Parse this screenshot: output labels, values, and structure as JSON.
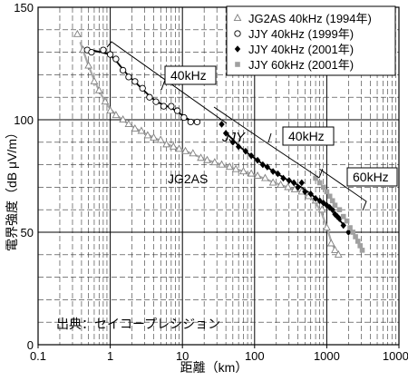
{
  "chart_data": {
    "type": "scatter",
    "x_scale": "log",
    "xlim": [
      0.1,
      10000
    ],
    "ylim": [
      0,
      150
    ],
    "grid": true,
    "legend_position": "top-right",
    "xlabel": "距離（km）",
    "ylabel": "電界強度（dB μV/m）",
    "source_note": "出典：セイコープレシジョン",
    "x_ticks": [
      {
        "value": 0.1,
        "label": "0.1"
      },
      {
        "value": 1,
        "label": "1"
      },
      {
        "value": 10,
        "label": "10"
      },
      {
        "value": 100,
        "label": "100"
      },
      {
        "value": 1000,
        "label": "1000"
      },
      {
        "value": 10000,
        "label": "10000"
      }
    ],
    "y_ticks": [
      {
        "value": 0,
        "label": "0"
      },
      {
        "value": 50,
        "label": "50"
      },
      {
        "value": 100,
        "label": "100"
      },
      {
        "value": 150,
        "label": "150"
      }
    ],
    "annotations": [
      {
        "text": "40kHz"
      },
      {
        "text": "JJY"
      },
      {
        "text": "40kHz"
      },
      {
        "text": "60kHz"
      },
      {
        "text": "JG2AS"
      }
    ],
    "series": [
      {
        "name": "JG2AS 40kHz (1994年)",
        "marker": "triangle-open",
        "color": "#808080",
        "x": [
          0.35,
          0.42,
          0.5,
          0.6,
          0.7,
          0.85,
          1.0,
          1.2,
          1.5,
          1.8,
          2.2,
          2.7,
          3.3,
          4,
          5,
          6,
          7.5,
          9,
          11,
          14,
          18,
          22,
          28,
          35,
          45,
          55,
          70,
          90,
          110,
          140,
          180,
          230,
          290,
          360,
          450,
          560,
          700,
          860,
          1000,
          1150,
          1300,
          1450
        ],
        "y": [
          138,
          131,
          124,
          117,
          113,
          108,
          104,
          102,
          100,
          98,
          96,
          95,
          93,
          92,
          91,
          89,
          88,
          87,
          86,
          85,
          83,
          82,
          81,
          80,
          79,
          78,
          77,
          76,
          75,
          74,
          72,
          71,
          70,
          69,
          68,
          66,
          64,
          60,
          52,
          45,
          42,
          40
        ]
      },
      {
        "name": "JJY 40kHz (1999年)",
        "marker": "circle-open",
        "color": "#000000",
        "x": [
          0.48,
          0.55,
          0.8,
          1.0,
          1.2,
          1.5,
          1.8,
          2.2,
          2.8,
          3.5,
          4.3,
          5.5,
          7,
          8.5,
          10.5,
          13,
          16
        ],
        "y": [
          131,
          130,
          131,
          129,
          127,
          122,
          119,
          117,
          114,
          110,
          108,
          106,
          106,
          104,
          101,
          99,
          99
        ]
      },
      {
        "name": "JJY 40kHz (2001年)",
        "marker": "diamond-filled",
        "color": "#000000",
        "x": [
          35,
          40,
          50,
          60,
          75,
          90,
          110,
          130,
          150,
          180,
          210,
          250,
          300,
          350,
          400,
          450,
          500,
          600,
          700,
          800,
          900,
          1000,
          1100,
          1200,
          1300,
          1400,
          1500,
          1700,
          2000
        ],
        "y": [
          98,
          94,
          90,
          88,
          86,
          84,
          82,
          80,
          79,
          77,
          76,
          74,
          73,
          72,
          70,
          72,
          68,
          67,
          65,
          64,
          63,
          62,
          61,
          60,
          58,
          57,
          56,
          53,
          50
        ]
      },
      {
        "name": "JJY 60kHz (2001年)",
        "marker": "square-filled",
        "color": "#a0a0a0",
        "x": [
          700,
          800,
          900,
          1000,
          1100,
          1200,
          1300,
          1500,
          1700,
          1900,
          2100,
          2300,
          2500,
          2700,
          2900,
          3100
        ],
        "y": [
          74,
          72,
          70,
          68,
          66,
          64,
          62,
          60,
          57,
          55,
          52,
          50,
          48,
          46,
          44,
          42
        ]
      }
    ]
  }
}
